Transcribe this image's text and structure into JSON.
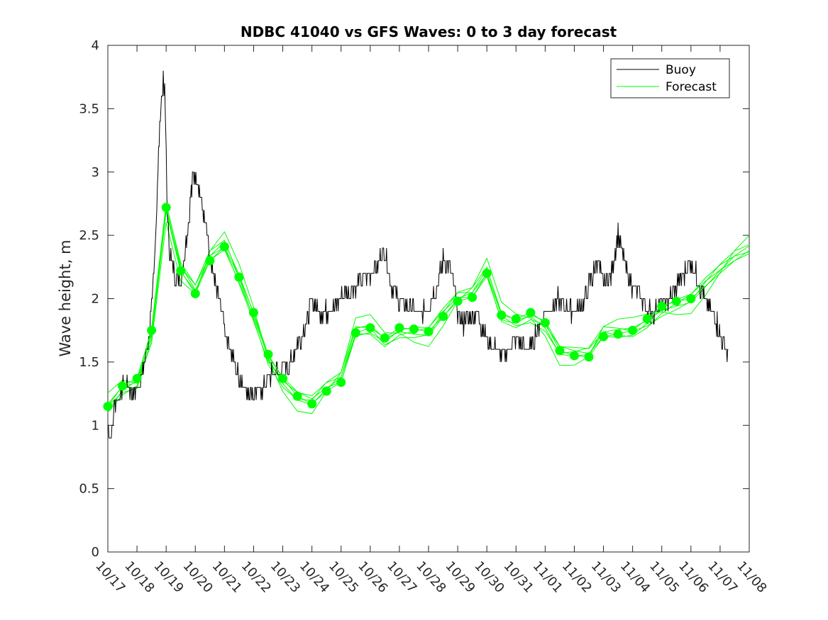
{
  "chart_data": {
    "type": "line",
    "title": "NDBC 41040 vs GFS Waves: 0 to 3 day forecast",
    "xlabel": "",
    "ylabel": "Wave height, m",
    "xlim": [
      0,
      22
    ],
    "ylim": [
      0,
      4
    ],
    "yticks": [
      0,
      0.5,
      1,
      1.5,
      2,
      2.5,
      3,
      3.5,
      4
    ],
    "ytick_labels": [
      "0",
      "0.5",
      "1",
      "1.5",
      "2",
      "2.5",
      "3",
      "3.5",
      "4"
    ],
    "xtick_labels": [
      "10/17",
      "10/18",
      "10/19",
      "10/20",
      "10/21",
      "10/22",
      "10/23",
      "10/24",
      "10/25",
      "10/26",
      "10/27",
      "10/28",
      "10/29",
      "10/30",
      "10/31",
      "11/01",
      "11/02",
      "11/03",
      "11/04",
      "11/05",
      "11/06",
      "11/07",
      "11/08"
    ],
    "legend": {
      "position": "top-right",
      "entries": [
        "Buoy",
        "Forecast"
      ]
    },
    "colors": {
      "buoy": "#000000",
      "forecast": "#00ff00",
      "axis": "#262626"
    },
    "series": [
      {
        "name": "Buoy",
        "x": [
          0,
          0.1,
          0.2,
          0.3,
          0.5,
          0.7,
          0.9,
          1.0,
          1.2,
          1.4,
          1.5,
          1.6,
          1.7,
          1.8,
          1.9,
          1.95,
          2.0,
          2.05,
          2.1,
          2.2,
          2.3,
          2.4,
          2.5,
          2.7,
          2.9,
          3.0,
          3.2,
          3.4,
          3.5,
          3.6,
          3.7,
          3.8,
          3.9,
          4.0,
          4.2,
          4.5,
          4.7,
          5.0,
          5.3,
          5.5,
          5.7,
          6.0,
          6.3,
          6.5,
          6.8,
          7.0,
          7.2,
          7.5,
          7.8,
          8.0,
          8.5,
          9.0,
          9.3,
          9.5,
          9.7,
          10.0,
          10.3,
          10.5,
          10.8,
          11.0,
          11.3,
          11.5,
          11.8,
          12.0,
          12.2,
          12.4,
          12.6,
          12.8,
          13.0,
          13.3,
          13.5,
          13.8,
          14.0,
          14.3,
          14.5,
          14.7,
          15.0,
          15.3,
          15.5,
          15.8,
          16.0,
          16.3,
          16.5,
          16.8,
          17.0,
          17.3,
          17.5,
          17.8,
          18.0,
          18.3,
          18.5,
          18.8,
          19.0,
          19.3,
          19.5,
          19.8,
          20.0,
          20.3,
          20.5,
          20.7,
          20.9,
          21.0,
          21.2,
          21.3
        ],
        "values": [
          1.0,
          0.9,
          1.1,
          1.2,
          1.3,
          1.3,
          1.25,
          1.3,
          1.4,
          1.7,
          1.9,
          2.3,
          2.9,
          3.5,
          3.7,
          3.6,
          3.2,
          2.6,
          2.4,
          2.3,
          2.2,
          2.2,
          2.1,
          2.5,
          2.9,
          3.0,
          2.8,
          2.5,
          2.3,
          2.2,
          2.1,
          2.0,
          1.9,
          1.8,
          1.6,
          1.4,
          1.3,
          1.25,
          1.3,
          1.4,
          1.4,
          1.45,
          1.5,
          1.65,
          1.8,
          2.0,
          1.9,
          1.9,
          1.95,
          2.0,
          2.1,
          2.2,
          2.3,
          2.4,
          2.1,
          2.0,
          1.95,
          1.9,
          1.9,
          1.95,
          2.1,
          2.3,
          2.2,
          1.9,
          1.8,
          1.85,
          1.9,
          1.8,
          1.7,
          1.6,
          1.55,
          1.6,
          1.7,
          1.6,
          1.6,
          1.75,
          1.9,
          1.95,
          2.0,
          1.9,
          1.9,
          1.95,
          2.1,
          2.3,
          2.1,
          2.2,
          2.5,
          2.2,
          2.1,
          2.0,
          1.9,
          1.9,
          1.95,
          2.0,
          2.1,
          2.2,
          2.3,
          2.1,
          2.0,
          1.9,
          1.8,
          1.7,
          1.6,
          1.55
        ]
      },
      {
        "name": "Forecast",
        "x": [
          0,
          0.5,
          1.0,
          1.5,
          2.0,
          2.5,
          3.0,
          3.5,
          4.0,
          4.5,
          5.0,
          5.5,
          6.0,
          6.5,
          7.0,
          7.5,
          8.0,
          8.5,
          9.0,
          9.5,
          10.0,
          10.5,
          11.0,
          11.5,
          12.0,
          12.5,
          13.0,
          13.5,
          14.0,
          14.5,
          15.0,
          15.5,
          16.0,
          16.5,
          17.0,
          17.5,
          18.0,
          18.5,
          19.0,
          19.5,
          20.0,
          20.5,
          21.0,
          21.5,
          22.0
        ],
        "values": [
          1.15,
          1.31,
          1.37,
          1.75,
          2.72,
          2.22,
          2.04,
          2.3,
          2.41,
          2.17,
          1.89,
          1.56,
          1.37,
          1.23,
          1.17,
          1.27,
          1.34,
          1.73,
          1.77,
          1.69,
          1.77,
          1.76,
          1.74,
          1.86,
          1.98,
          2.01,
          2.2,
          1.87,
          1.84,
          1.89,
          1.81,
          1.59,
          1.55,
          1.54,
          1.7,
          1.72,
          1.75,
          1.84,
          1.94,
          1.98,
          2.0,
          2.1,
          2.2,
          2.3,
          2.38
        ]
      }
    ],
    "forecast_markers": {
      "x": [
        0,
        0.5,
        1.0,
        1.5,
        2.0,
        2.5,
        3.0,
        3.5,
        4.0,
        4.5,
        5.0,
        5.5,
        6.0,
        6.5,
        7.0,
        7.5,
        8.0,
        8.5,
        9.0,
        9.5,
        10.0,
        10.5,
        11.0,
        11.5,
        12.0,
        12.5,
        13.0,
        13.5,
        14.0,
        14.5,
        15.0,
        15.5,
        16.0,
        16.5,
        17.0,
        17.5,
        18.0,
        18.5,
        19.0,
        19.5,
        20.0
      ],
      "values": [
        1.15,
        1.31,
        1.37,
        1.75,
        2.72,
        2.22,
        2.04,
        2.3,
        2.41,
        2.17,
        1.89,
        1.56,
        1.37,
        1.23,
        1.17,
        1.27,
        1.34,
        1.73,
        1.77,
        1.69,
        1.77,
        1.76,
        1.74,
        1.86,
        1.98,
        2.01,
        2.2,
        1.87,
        1.84,
        1.89,
        1.81,
        1.59,
        1.55,
        1.54,
        1.7,
        1.72,
        1.75,
        1.84,
        1.94,
        1.98,
        2.0
      ]
    }
  }
}
